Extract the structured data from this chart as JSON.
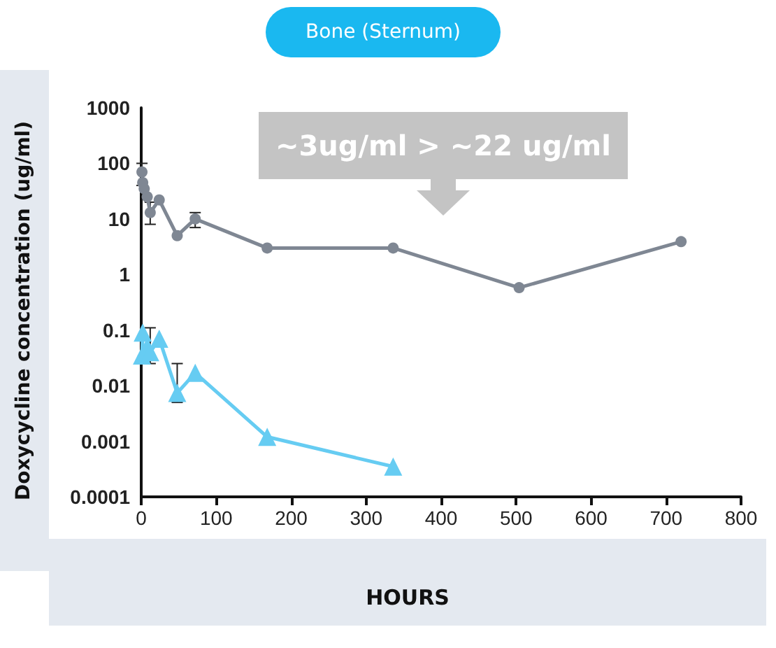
{
  "chart_data": {
    "type": "line",
    "title": "Bone (Sternum)",
    "xlabel": "HOURS",
    "ylabel": "Doxycycline concentration (ug/ml)",
    "annotations": [
      "~3ug/ml > ~22 ug/ml"
    ],
    "xlim": [
      0,
      800
    ],
    "xticks": [
      0,
      100,
      200,
      300,
      400,
      500,
      600,
      700,
      800
    ],
    "ylim": [
      0.0001,
      1000
    ],
    "yticks": [
      0.0001,
      0.001,
      0.01,
      0.1,
      1,
      10,
      100,
      1000
    ],
    "log": "y",
    "grid": false,
    "legend": false,
    "series": [
      {
        "color": "#7f8793",
        "marker": "circle",
        "x": [
          1,
          2,
          4,
          8,
          12,
          24,
          48,
          72,
          168,
          336,
          504,
          720
        ],
        "values": [
          70,
          45,
          35,
          25,
          13,
          22,
          5,
          10,
          3,
          3,
          0.58,
          3.9
        ],
        "errors": [
          [
            40,
            100
          ],
          null,
          null,
          null,
          [
            8,
            20
          ],
          null,
          null,
          [
            7,
            13
          ],
          null,
          null,
          null,
          null
        ]
      },
      {
        "color": "#66ccf2",
        "marker": "triangle",
        "x": [
          1,
          2,
          4,
          8,
          12,
          24,
          48,
          72,
          168,
          336
        ],
        "values": [
          0.035,
          0.09,
          null,
          0.05,
          0.04,
          0.07,
          0.0074,
          0.017,
          0.0012,
          0.00035
        ],
        "errors": [
          null,
          null,
          null,
          null,
          [
            0.025,
            0.11
          ],
          null,
          [
            0.005,
            0.025
          ],
          null,
          null,
          null
        ]
      }
    ]
  }
}
